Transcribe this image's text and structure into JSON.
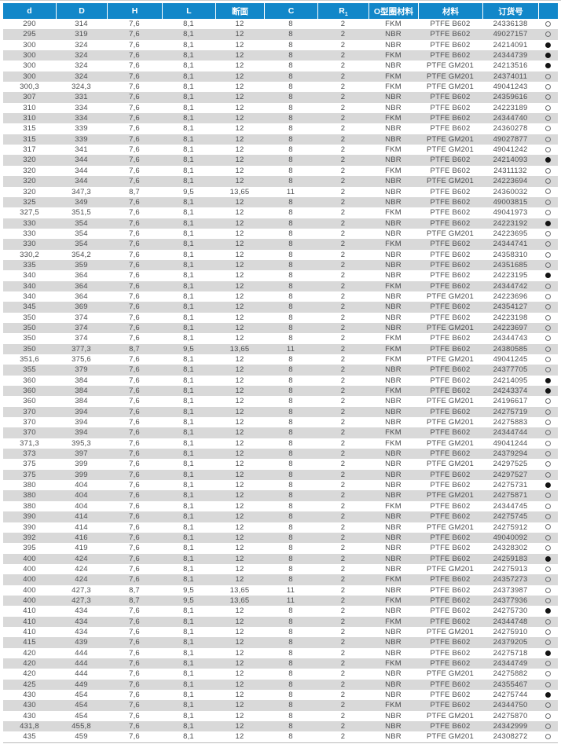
{
  "colors": {
    "header_bg": "#1287c9",
    "header_text": "#ffffff",
    "row_alt_bg": "#d9d9d9",
    "row_bg": "#ffffff",
    "body_text": "#4b4c4e"
  },
  "table": {
    "columns": [
      {
        "key": "d",
        "label": "d"
      },
      {
        "key": "D",
        "label": "D"
      },
      {
        "key": "H",
        "label": "H"
      },
      {
        "key": "L",
        "label": "L"
      },
      {
        "key": "section",
        "label": "断面"
      },
      {
        "key": "C",
        "label": "C"
      },
      {
        "key": "R1",
        "label": "R",
        "sub": "1"
      },
      {
        "key": "oring-material",
        "label": "O型圈材料"
      },
      {
        "key": "material",
        "label": "材料"
      },
      {
        "key": "order-no",
        "label": "订货号"
      },
      {
        "key": "availability",
        "label": ""
      }
    ],
    "rows": [
      [
        "290",
        "314",
        "7,6",
        "8,1",
        "12",
        "8",
        "2",
        "FKM",
        "PTFE B602",
        "24336138",
        "hollow"
      ],
      [
        "295",
        "319",
        "7,6",
        "8,1",
        "12",
        "8",
        "2",
        "NBR",
        "PTFE B602",
        "49027157",
        "hollow"
      ],
      [
        "300",
        "324",
        "7,6",
        "8,1",
        "12",
        "8",
        "2",
        "NBR",
        "PTFE B602",
        "24214091",
        "filled"
      ],
      [
        "300",
        "324",
        "7,6",
        "8,1",
        "12",
        "8",
        "2",
        "FKM",
        "PTFE B602",
        "24344739",
        "filled"
      ],
      [
        "300",
        "324",
        "7,6",
        "8,1",
        "12",
        "8",
        "2",
        "NBR",
        "PTFE GM201",
        "24213516",
        "filled"
      ],
      [
        "300",
        "324",
        "7,6",
        "8,1",
        "12",
        "8",
        "2",
        "FKM",
        "PTFE GM201",
        "24374011",
        "hollow"
      ],
      [
        "300,3",
        "324,3",
        "7,6",
        "8,1",
        "12",
        "8",
        "2",
        "FKM",
        "PTFE GM201",
        "49041243",
        "hollow"
      ],
      [
        "307",
        "331",
        "7,6",
        "8,1",
        "12",
        "8",
        "2",
        "NBR",
        "PTFE B602",
        "24359616",
        "hollow"
      ],
      [
        "310",
        "334",
        "7,6",
        "8,1",
        "12",
        "8",
        "2",
        "NBR",
        "PTFE B602",
        "24223189",
        "hollow"
      ],
      [
        "310",
        "334",
        "7,6",
        "8,1",
        "12",
        "8",
        "2",
        "FKM",
        "PTFE B602",
        "24344740",
        "hollow"
      ],
      [
        "315",
        "339",
        "7,6",
        "8,1",
        "12",
        "8",
        "2",
        "NBR",
        "PTFE B602",
        "24360278",
        "hollow"
      ],
      [
        "315",
        "339",
        "7,6",
        "8,1",
        "12",
        "8",
        "2",
        "NBR",
        "PTFE GM201",
        "49027877",
        "hollow"
      ],
      [
        "317",
        "341",
        "7,6",
        "8,1",
        "12",
        "8",
        "2",
        "FKM",
        "PTFE GM201",
        "49041242",
        "hollow"
      ],
      [
        "320",
        "344",
        "7,6",
        "8,1",
        "12",
        "8",
        "2",
        "NBR",
        "PTFE B602",
        "24214093",
        "filled"
      ],
      [
        "320",
        "344",
        "7,6",
        "8,1",
        "12",
        "8",
        "2",
        "FKM",
        "PTFE B602",
        "24311132",
        "hollow"
      ],
      [
        "320",
        "344",
        "7,6",
        "8,1",
        "12",
        "8",
        "2",
        "NBR",
        "PTFE GM201",
        "24223694",
        "hollow"
      ],
      [
        "320",
        "347,3",
        "8,7",
        "9,5",
        "13,65",
        "11",
        "2",
        "NBR",
        "PTFE B602",
        "24360032",
        "hollow"
      ],
      [
        "325",
        "349",
        "7,6",
        "8,1",
        "12",
        "8",
        "2",
        "NBR",
        "PTFE B602",
        "49003815",
        "hollow"
      ],
      [
        "327,5",
        "351,5",
        "7,6",
        "8,1",
        "12",
        "8",
        "2",
        "FKM",
        "PTFE B602",
        "49041973",
        "hollow"
      ],
      [
        "330",
        "354",
        "7,6",
        "8,1",
        "12",
        "8",
        "2",
        "NBR",
        "PTFE B602",
        "24223192",
        "filled"
      ],
      [
        "330",
        "354",
        "7,6",
        "8,1",
        "12",
        "8",
        "2",
        "NBR",
        "PTFE GM201",
        "24223695",
        "hollow"
      ],
      [
        "330",
        "354",
        "7,6",
        "8,1",
        "12",
        "8",
        "2",
        "FKM",
        "PTFE B602",
        "24344741",
        "hollow"
      ],
      [
        "330,2",
        "354,2",
        "7,6",
        "8,1",
        "12",
        "8",
        "2",
        "NBR",
        "PTFE B602",
        "24358310",
        "hollow"
      ],
      [
        "335",
        "359",
        "7,6",
        "8,1",
        "12",
        "8",
        "2",
        "NBR",
        "PTFE B602",
        "24351685",
        "hollow"
      ],
      [
        "340",
        "364",
        "7,6",
        "8,1",
        "12",
        "8",
        "2",
        "NBR",
        "PTFE B602",
        "24223195",
        "filled"
      ],
      [
        "340",
        "364",
        "7,6",
        "8,1",
        "12",
        "8",
        "2",
        "FKM",
        "PTFE B602",
        "24344742",
        "hollow"
      ],
      [
        "340",
        "364",
        "7,6",
        "8,1",
        "12",
        "8",
        "2",
        "NBR",
        "PTFE GM201",
        "24223696",
        "hollow"
      ],
      [
        "345",
        "369",
        "7,6",
        "8,1",
        "12",
        "8",
        "2",
        "NBR",
        "PTFE B602",
        "24354127",
        "hollow"
      ],
      [
        "350",
        "374",
        "7,6",
        "8,1",
        "12",
        "8",
        "2",
        "NBR",
        "PTFE B602",
        "24223198",
        "hollow"
      ],
      [
        "350",
        "374",
        "7,6",
        "8,1",
        "12",
        "8",
        "2",
        "NBR",
        "PTFE GM201",
        "24223697",
        "hollow"
      ],
      [
        "350",
        "374",
        "7,6",
        "8,1",
        "12",
        "8",
        "2",
        "FKM",
        "PTFE B602",
        "24344743",
        "hollow"
      ],
      [
        "350",
        "377,3",
        "8,7",
        "9,5",
        "13,65",
        "11",
        "2",
        "FKM",
        "PTFE B602",
        "24380585",
        "hollow"
      ],
      [
        "351,6",
        "375,6",
        "7,6",
        "8,1",
        "12",
        "8",
        "2",
        "FKM",
        "PTFE GM201",
        "49041245",
        "hollow"
      ],
      [
        "355",
        "379",
        "7,6",
        "8,1",
        "12",
        "8",
        "2",
        "NBR",
        "PTFE B602",
        "24377705",
        "hollow"
      ],
      [
        "360",
        "384",
        "7,6",
        "8,1",
        "12",
        "8",
        "2",
        "NBR",
        "PTFE B602",
        "24214095",
        "filled"
      ],
      [
        "360",
        "384",
        "7,6",
        "8,1",
        "12",
        "8",
        "2",
        "FKM",
        "PTFE B602",
        "24243374",
        "filled"
      ],
      [
        "360",
        "384",
        "7,6",
        "8,1",
        "12",
        "8",
        "2",
        "NBR",
        "PTFE GM201",
        "24196617",
        "hollow"
      ],
      [
        "370",
        "394",
        "7,6",
        "8,1",
        "12",
        "8",
        "2",
        "NBR",
        "PTFE B602",
        "24275719",
        "hollow"
      ],
      [
        "370",
        "394",
        "7,6",
        "8,1",
        "12",
        "8",
        "2",
        "NBR",
        "PTFE GM201",
        "24275883",
        "hollow"
      ],
      [
        "370",
        "394",
        "7,6",
        "8,1",
        "12",
        "8",
        "2",
        "FKM",
        "PTFE B602",
        "24344744",
        "hollow"
      ],
      [
        "371,3",
        "395,3",
        "7,6",
        "8,1",
        "12",
        "8",
        "2",
        "FKM",
        "PTFE GM201",
        "49041244",
        "hollow"
      ],
      [
        "373",
        "397",
        "7,6",
        "8,1",
        "12",
        "8",
        "2",
        "NBR",
        "PTFE B602",
        "24379294",
        "hollow"
      ],
      [
        "375",
        "399",
        "7,6",
        "8,1",
        "12",
        "8",
        "2",
        "NBR",
        "PTFE GM201",
        "24297525",
        "hollow"
      ],
      [
        "375",
        "399",
        "7,6",
        "8,1",
        "12",
        "8",
        "2",
        "NBR",
        "PTFE B602",
        "24297527",
        "hollow"
      ],
      [
        "380",
        "404",
        "7,6",
        "8,1",
        "12",
        "8",
        "2",
        "NBR",
        "PTFE B602",
        "24275731",
        "filled"
      ],
      [
        "380",
        "404",
        "7,6",
        "8,1",
        "12",
        "8",
        "2",
        "NBR",
        "PTFE GM201",
        "24275871",
        "hollow"
      ],
      [
        "380",
        "404",
        "7,6",
        "8,1",
        "12",
        "8",
        "2",
        "FKM",
        "PTFE B602",
        "24344745",
        "hollow"
      ],
      [
        "390",
        "414",
        "7,6",
        "8,1",
        "12",
        "8",
        "2",
        "NBR",
        "PTFE B602",
        "24275745",
        "hollow"
      ],
      [
        "390",
        "414",
        "7,6",
        "8,1",
        "12",
        "8",
        "2",
        "NBR",
        "PTFE GM201",
        "24275912",
        "hollow"
      ],
      [
        "392",
        "416",
        "7,6",
        "8,1",
        "12",
        "8",
        "2",
        "NBR",
        "PTFE B602",
        "49040092",
        "hollow"
      ],
      [
        "395",
        "419",
        "7,6",
        "8,1",
        "12",
        "8",
        "2",
        "NBR",
        "PTFE B602",
        "24328302",
        "hollow"
      ],
      [
        "400",
        "424",
        "7,6",
        "8,1",
        "12",
        "8",
        "2",
        "NBR",
        "PTFE B602",
        "24259183",
        "filled"
      ],
      [
        "400",
        "424",
        "7,6",
        "8,1",
        "12",
        "8",
        "2",
        "NBR",
        "PTFE GM201",
        "24275913",
        "hollow"
      ],
      [
        "400",
        "424",
        "7,6",
        "8,1",
        "12",
        "8",
        "2",
        "FKM",
        "PTFE B602",
        "24357273",
        "hollow"
      ],
      [
        "400",
        "427,3",
        "8,7",
        "9,5",
        "13,65",
        "11",
        "2",
        "NBR",
        "PTFE B602",
        "24373987",
        "hollow"
      ],
      [
        "400",
        "427,3",
        "8,7",
        "9,5",
        "13,65",
        "11",
        "2",
        "FKM",
        "PTFE B602",
        "24377936",
        "hollow"
      ],
      [
        "410",
        "434",
        "7,6",
        "8,1",
        "12",
        "8",
        "2",
        "NBR",
        "PTFE B602",
        "24275730",
        "filled"
      ],
      [
        "410",
        "434",
        "7,6",
        "8,1",
        "12",
        "8",
        "2",
        "FKM",
        "PTFE B602",
        "24344748",
        "hollow"
      ],
      [
        "410",
        "434",
        "7,6",
        "8,1",
        "12",
        "8",
        "2",
        "NBR",
        "PTFE GM201",
        "24275910",
        "hollow"
      ],
      [
        "415",
        "439",
        "7,6",
        "8,1",
        "12",
        "8",
        "2",
        "NBR",
        "PTFE B602",
        "24379205",
        "hollow"
      ],
      [
        "420",
        "444",
        "7,6",
        "8,1",
        "12",
        "8",
        "2",
        "NBR",
        "PTFE B602",
        "24275718",
        "filled"
      ],
      [
        "420",
        "444",
        "7,6",
        "8,1",
        "12",
        "8",
        "2",
        "FKM",
        "PTFE B602",
        "24344749",
        "hollow"
      ],
      [
        "420",
        "444",
        "7,6",
        "8,1",
        "12",
        "8",
        "2",
        "NBR",
        "PTFE GM201",
        "24275882",
        "hollow"
      ],
      [
        "425",
        "449",
        "7,6",
        "8,1",
        "12",
        "8",
        "2",
        "NBR",
        "PTFE B602",
        "24355467",
        "hollow"
      ],
      [
        "430",
        "454",
        "7,6",
        "8,1",
        "12",
        "8",
        "2",
        "NBR",
        "PTFE B602",
        "24275744",
        "filled"
      ],
      [
        "430",
        "454",
        "7,6",
        "8,1",
        "12",
        "8",
        "2",
        "FKM",
        "PTFE B602",
        "24344750",
        "hollow"
      ],
      [
        "430",
        "454",
        "7,6",
        "8,1",
        "12",
        "8",
        "2",
        "NBR",
        "PTFE GM201",
        "24275870",
        "hollow"
      ],
      [
        "431,8",
        "455,8",
        "7,6",
        "8,1",
        "12",
        "8",
        "2",
        "NBR",
        "PTFE B602",
        "24342999",
        "hollow"
      ],
      [
        "435",
        "459",
        "7,6",
        "8,1",
        "12",
        "8",
        "2",
        "NBR",
        "PTFE GM201",
        "24308272",
        "hollow"
      ]
    ]
  },
  "legend": {
    "filled_circle_icon": "●",
    "hollow_circle_icon": "○"
  }
}
